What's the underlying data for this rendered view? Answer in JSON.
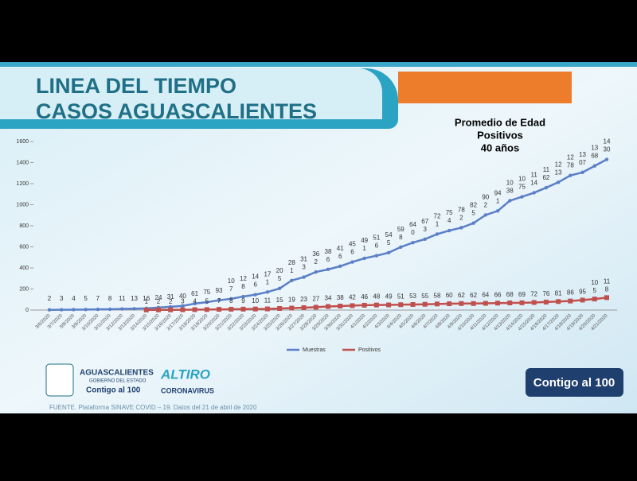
{
  "header": {
    "title_lines": [
      "LINEA DEL TIEMPO",
      "CASOS AGUASCALIENTES"
    ]
  },
  "chart_data": {
    "type": "line",
    "categories": [
      "3/6/2020",
      "3/7/2020",
      "3/8/2020",
      "3/9/2020",
      "3/10/2020",
      "3/11/2020",
      "3/12/2020",
      "3/13/2020",
      "3/14/2020",
      "3/15/2020",
      "3/16/2020",
      "3/17/2020",
      "3/18/2020",
      "3/19/2020",
      "3/20/2020",
      "3/21/2020",
      "3/22/2020",
      "3/23/2020",
      "3/24/2020",
      "3/25/2020",
      "3/26/2020",
      "3/27/2020",
      "3/28/2020",
      "3/29/2020",
      "3/30/2020",
      "3/31/2020",
      "4/1/2020",
      "4/2/2020",
      "4/3/2020",
      "4/4/2020",
      "4/5/2020",
      "4/6/2020",
      "4/7/2020",
      "4/8/2020",
      "4/9/2020",
      "4/10/2020",
      "4/11/2020",
      "4/12/2020",
      "4/13/2020",
      "4/14/2020",
      "4/15/2020",
      "4/16/2020",
      "4/17/2020",
      "4/18/2020",
      "4/19/2020",
      "4/20/2020",
      "4/21/2020"
    ],
    "series": [
      {
        "name": "Muestras",
        "color": "#5b7fc7",
        "values": [
          2,
          3,
          4,
          5,
          7,
          8,
          11,
          13,
          16,
          24,
          31,
          40,
          61,
          75,
          93,
          107,
          128,
          146,
          171,
          205,
          281,
          313,
          362,
          386,
          416,
          456,
          491,
          516,
          545,
          598,
          640,
          673,
          721,
          754,
          782,
          825,
          902,
          941,
          1038,
          1075,
          1114,
          1162,
          1213,
          1278,
          1307,
          1368,
          1430
        ]
      },
      {
        "name": "Positivos",
        "color": "#c0504d",
        "values": [
          null,
          null,
          null,
          null,
          null,
          null,
          null,
          null,
          1,
          2,
          2,
          3,
          4,
          5,
          7,
          8,
          9,
          10,
          11,
          15,
          19,
          23,
          27,
          34,
          38,
          42,
          46,
          48,
          49,
          51,
          53,
          55,
          58,
          60,
          62,
          62,
          64,
          66,
          68,
          69,
          72,
          76,
          81,
          86,
          95,
          105,
          118
        ]
      }
    ],
    "ylim": [
      0,
      1600
    ],
    "yticks": [
      0,
      200,
      400,
      600,
      800,
      1000,
      1200,
      1400,
      1600
    ],
    "annotation": [
      "Promedio de Edad",
      "Positivos",
      "40 años"
    ]
  },
  "footer": {
    "source": "FUENTE. Plataforma SINAVE COVID – 19. Datos del 21 de abril de 2020",
    "logo1": [
      "AGUASCALIENTES",
      "GOBIERNO DEL ESTADO",
      "Contigo al 100"
    ],
    "logo2": [
      "ALTIRO",
      "CORONAVIRUS"
    ],
    "logo3": "Contigo al 100"
  }
}
